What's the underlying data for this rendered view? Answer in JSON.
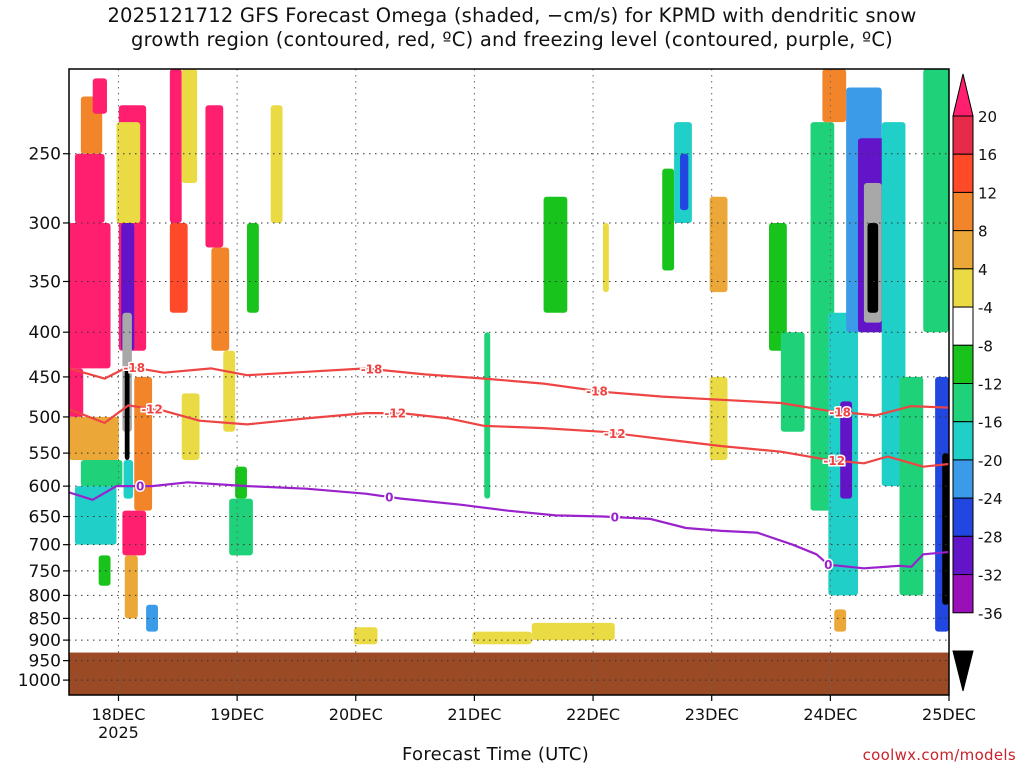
{
  "title": {
    "line1": "2025121712 GFS Forecast Omega (shaded, −cm/s) for KPMD with dendritic snow",
    "line2": "growth region (contoured, red, ºC) and freezing level (contoured, purple, ºC)"
  },
  "credit": "coolwx.com/models",
  "chart_data": {
    "type": "heatmap",
    "xlabel": "Forecast Time (UTC)",
    "ylabel": "",
    "x_ticks": [
      {
        "day": 17.917,
        "label": "18DEC",
        "sublabel": "2025"
      },
      {
        "day": 18.917,
        "label": "19DEC"
      },
      {
        "day": 19.917,
        "label": "20DEC"
      },
      {
        "day": 20.917,
        "label": "21DEC"
      },
      {
        "day": 21.917,
        "label": "22DEC"
      },
      {
        "day": 22.917,
        "label": "23DEC"
      },
      {
        "day": 23.917,
        "label": "24DEC"
      },
      {
        "day": 24.917,
        "label": "25DEC"
      }
    ],
    "x_range_day": [
      17.5,
      24.917
    ],
    "y_scale": "log",
    "y_range_hPa": [
      200,
      1040
    ],
    "y_ticks": [
      250,
      300,
      350,
      400,
      450,
      500,
      550,
      600,
      650,
      700,
      750,
      800,
      850,
      900,
      950,
      1000
    ],
    "grid": true,
    "ground_level_hPa": 930,
    "colorbar": {
      "units": "-cm/s",
      "labels": [
        20,
        16,
        12,
        8,
        4,
        -4,
        -8,
        -12,
        -16,
        -20,
        -24,
        -28,
        -32,
        -36
      ],
      "colors": [
        "#e62a4a",
        "#ff4a2a",
        "#f2842a",
        "#eba838",
        "#eadb44",
        "#ffffff",
        "#18c41c",
        "#1fd27a",
        "#1fcfc8",
        "#3b9be8",
        "#2147e0",
        "#6414c8",
        "#9a10b8",
        "#a8a8a8",
        "#000000"
      ],
      "top_arrow_color": "#ff1f6e",
      "bottom_arrow_color": "#000000"
    },
    "omega_cells": [
      {
        "x": [
          17.5,
          17.85
        ],
        "p": [
          300,
          440
        ],
        "v": 22
      },
      {
        "x": [
          17.55,
          17.8
        ],
        "p": [
          250,
          300
        ],
        "v": 22
      },
      {
        "x": [
          17.6,
          17.78
        ],
        "p": [
          215,
          250
        ],
        "v": 14
      },
      {
        "x": [
          17.7,
          17.82
        ],
        "p": [
          205,
          225
        ],
        "v": 20
      },
      {
        "x": [
          17.5,
          17.62
        ],
        "p": [
          440,
          500
        ],
        "v": 22
      },
      {
        "x": [
          17.5,
          17.92
        ],
        "p": [
          500,
          560
        ],
        "v": 10
      },
      {
        "x": [
          17.55,
          17.9
        ],
        "p": [
          600,
          700
        ],
        "v": -14
      },
      {
        "x": [
          17.6,
          17.95
        ],
        "p": [
          560,
          600
        ],
        "v": -10
      },
      {
        "x": [
          17.75,
          17.85
        ],
        "p": [
          720,
          780
        ],
        "v": -6
      },
      {
        "x": [
          17.92,
          18.15
        ],
        "p": [
          220,
          420
        ],
        "v": 22
      },
      {
        "x": [
          17.9,
          18.1
        ],
        "p": [
          230,
          300
        ],
        "v": 6
      },
      {
        "x": [
          17.94,
          18.05
        ],
        "p": [
          300,
          420
        ],
        "v": -24
      },
      {
        "x": [
          17.95,
          18.03
        ],
        "p": [
          380,
          520
        ],
        "v": -32
      },
      {
        "x": [
          17.97,
          18.01
        ],
        "p": [
          440,
          560
        ],
        "v": -38
      },
      {
        "x": [
          17.96,
          18.04
        ],
        "p": [
          560,
          620
        ],
        "v": -12
      },
      {
        "x": [
          18.05,
          18.2
        ],
        "p": [
          450,
          640
        ],
        "v": 14
      },
      {
        "x": [
          17.95,
          18.15
        ],
        "p": [
          640,
          720
        ],
        "v": 20
      },
      {
        "x": [
          17.97,
          18.08
        ],
        "p": [
          720,
          850
        ],
        "v": 12
      },
      {
        "x": [
          18.15,
          18.25
        ],
        "p": [
          820,
          880
        ],
        "v": -16
      },
      {
        "x": [
          18.35,
          18.45
        ],
        "p": [
          200,
          300
        ],
        "v": 22
      },
      {
        "x": [
          18.35,
          18.5
        ],
        "p": [
          300,
          380
        ],
        "v": 18
      },
      {
        "x": [
          18.45,
          18.58
        ],
        "p": [
          200,
          270
        ],
        "v": 8
      },
      {
        "x": [
          18.65,
          18.8
        ],
        "p": [
          220,
          320
        ],
        "v": 22
      },
      {
        "x": [
          18.7,
          18.85
        ],
        "p": [
          320,
          420
        ],
        "v": 14
      },
      {
        "x": [
          18.8,
          18.9
        ],
        "p": [
          420,
          520
        ],
        "v": 6
      },
      {
        "x": [
          18.45,
          18.6
        ],
        "p": [
          470,
          560
        ],
        "v": 8
      },
      {
        "x": [
          18.85,
          19.05
        ],
        "p": [
          620,
          720
        ],
        "v": -10
      },
      {
        "x": [
          18.9,
          19.0
        ],
        "p": [
          570,
          620
        ],
        "v": -6
      },
      {
        "x": [
          19.0,
          19.1
        ],
        "p": [
          300,
          380
        ],
        "v": -6
      },
      {
        "x": [
          19.2,
          19.3
        ],
        "p": [
          220,
          300
        ],
        "v": 6
      },
      {
        "x": [
          19.9,
          20.1
        ],
        "p": [
          870,
          910
        ],
        "v": 6
      },
      {
        "x": [
          20.9,
          21.4
        ],
        "p": [
          880,
          910
        ],
        "v": 6
      },
      {
        "x": [
          21.4,
          22.1
        ],
        "p": [
          860,
          900
        ],
        "v": 5
      },
      {
        "x": [
          21.0,
          21.05
        ],
        "p": [
          400,
          620
        ],
        "v": -8
      },
      {
        "x": [
          21.5,
          21.7
        ],
        "p": [
          280,
          380
        ],
        "v": -6
      },
      {
        "x": [
          22.0,
          22.05
        ],
        "p": [
          300,
          360
        ],
        "v": 6
      },
      {
        "x": [
          22.5,
          22.6
        ],
        "p": [
          260,
          340
        ],
        "v": -6
      },
      {
        "x": [
          22.6,
          22.75
        ],
        "p": [
          230,
          300
        ],
        "v": -14
      },
      {
        "x": [
          22.65,
          22.72
        ],
        "p": [
          250,
          290
        ],
        "v": -22
      },
      {
        "x": [
          22.9,
          23.05
        ],
        "p": [
          280,
          360
        ],
        "v": 12
      },
      {
        "x": [
          22.9,
          23.05
        ],
        "p": [
          450,
          560
        ],
        "v": 6
      },
      {
        "x": [
          23.4,
          23.55
        ],
        "p": [
          300,
          420
        ],
        "v": -6
      },
      {
        "x": [
          23.5,
          23.7
        ],
        "p": [
          400,
          520
        ],
        "v": -10
      },
      {
        "x": [
          23.75,
          23.95
        ],
        "p": [
          230,
          640
        ],
        "v": -8
      },
      {
        "x": [
          23.9,
          24.15
        ],
        "p": [
          380,
          800
        ],
        "v": -14
      },
      {
        "x": [
          24.0,
          24.1
        ],
        "p": [
          480,
          620
        ],
        "v": -24
      },
      {
        "x": [
          24.05,
          24.35
        ],
        "p": [
          210,
          400
        ],
        "v": -16
      },
      {
        "x": [
          24.15,
          24.4
        ],
        "p": [
          240,
          400
        ],
        "v": -24
      },
      {
        "x": [
          24.2,
          24.35
        ],
        "p": [
          270,
          390
        ],
        "v": -32
      },
      {
        "x": [
          24.23,
          24.32
        ],
        "p": [
          300,
          380
        ],
        "v": -38
      },
      {
        "x": [
          24.35,
          24.55
        ],
        "p": [
          230,
          600
        ],
        "v": -12
      },
      {
        "x": [
          24.5,
          24.7
        ],
        "p": [
          450,
          800
        ],
        "v": -8
      },
      {
        "x": [
          23.85,
          24.05
        ],
        "p": [
          200,
          230
        ],
        "v": 14
      },
      {
        "x": [
          23.95,
          24.05
        ],
        "p": [
          830,
          880
        ],
        "v": 12
      },
      {
        "x": [
          24.7,
          24.917
        ],
        "p": [
          200,
          400
        ],
        "v": -8
      },
      {
        "x": [
          24.8,
          24.917
        ],
        "p": [
          450,
          880
        ],
        "v": -20
      },
      {
        "x": [
          24.86,
          24.917
        ],
        "p": [
          550,
          820
        ],
        "v": -38
      }
    ],
    "contours": [
      {
        "name": "-18",
        "color": "#ee4444",
        "points": [
          [
            17.5,
            440
          ],
          [
            17.8,
            452
          ],
          [
            18.0,
            438
          ],
          [
            18.3,
            445
          ],
          [
            18.7,
            440
          ],
          [
            19.0,
            448
          ],
          [
            19.5,
            444
          ],
          [
            20.0,
            440
          ],
          [
            20.5,
            447
          ],
          [
            21.0,
            452
          ],
          [
            21.5,
            458
          ],
          [
            22.0,
            468
          ],
          [
            22.5,
            474
          ],
          [
            23.0,
            478
          ],
          [
            23.5,
            482
          ],
          [
            23.9,
            492
          ],
          [
            24.3,
            498
          ],
          [
            24.6,
            486
          ],
          [
            24.917,
            488
          ]
        ],
        "labels": [
          [
            18.05,
            "-18"
          ],
          [
            20.05,
            "-18"
          ],
          [
            21.95,
            "-18"
          ],
          [
            24.0,
            "-18"
          ]
        ]
      },
      {
        "name": "-12",
        "color": "#ee4444",
        "points": [
          [
            17.5,
            490
          ],
          [
            17.8,
            508
          ],
          [
            18.0,
            485
          ],
          [
            18.3,
            492
          ],
          [
            18.6,
            505
          ],
          [
            19.0,
            510
          ],
          [
            19.5,
            502
          ],
          [
            20.0,
            495
          ],
          [
            20.3,
            495
          ],
          [
            20.7,
            502
          ],
          [
            21.0,
            512
          ],
          [
            21.5,
            515
          ],
          [
            22.0,
            520
          ],
          [
            22.5,
            530
          ],
          [
            23.0,
            540
          ],
          [
            23.5,
            548
          ],
          [
            23.9,
            560
          ],
          [
            24.2,
            565
          ],
          [
            24.4,
            555
          ],
          [
            24.7,
            570
          ],
          [
            24.917,
            566
          ]
        ],
        "labels": [
          [
            18.2,
            "-12"
          ],
          [
            20.25,
            "-12"
          ],
          [
            22.1,
            "-12"
          ],
          [
            23.95,
            "-12"
          ]
        ]
      },
      {
        "name": "0",
        "color": "#9a22cc",
        "points": [
          [
            17.5,
            610
          ],
          [
            17.7,
            622
          ],
          [
            17.9,
            600
          ],
          [
            18.2,
            600
          ],
          [
            18.5,
            594
          ],
          [
            19.0,
            600
          ],
          [
            19.5,
            604
          ],
          [
            20.0,
            612
          ],
          [
            20.3,
            620
          ],
          [
            20.8,
            630
          ],
          [
            21.2,
            640
          ],
          [
            21.6,
            648
          ],
          [
            22.0,
            650
          ],
          [
            22.4,
            654
          ],
          [
            22.7,
            670
          ],
          [
            23.0,
            675
          ],
          [
            23.3,
            678
          ],
          [
            23.6,
            700
          ],
          [
            23.8,
            718
          ],
          [
            23.9,
            738
          ],
          [
            24.2,
            745
          ],
          [
            24.5,
            740
          ],
          [
            24.6,
            742
          ],
          [
            24.7,
            718
          ],
          [
            24.9,
            714
          ],
          [
            24.917,
            714
          ]
        ],
        "labels": [
          [
            18.1,
            "0"
          ],
          [
            20.2,
            "0"
          ],
          [
            22.1,
            "0"
          ],
          [
            23.9,
            "0"
          ]
        ]
      }
    ]
  }
}
